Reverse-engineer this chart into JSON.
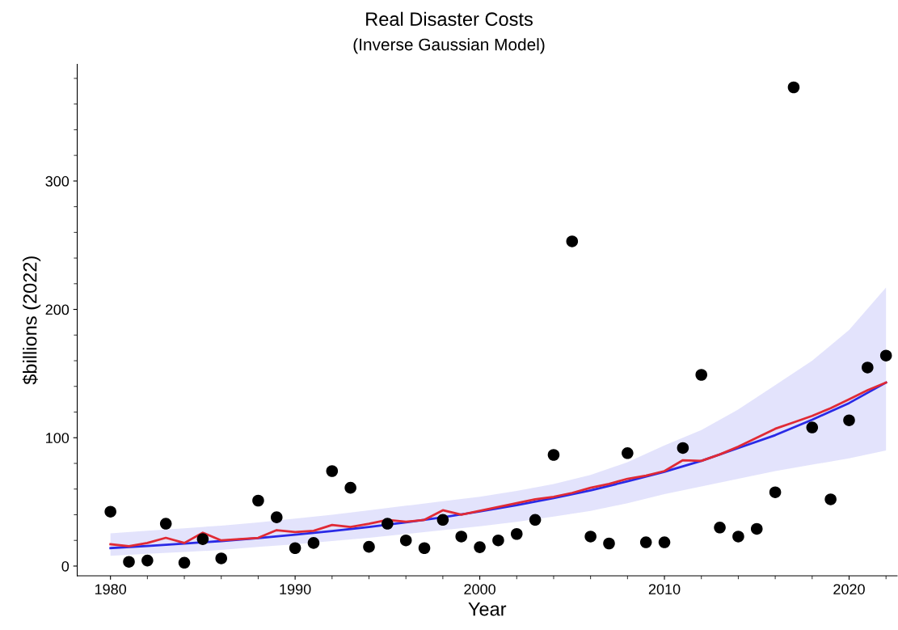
{
  "chart_data": {
    "type": "scatter",
    "title": "Real Disaster Costs",
    "subtitle": "(Inverse Gaussian Model)",
    "xlabel": "Year",
    "ylabel": "$billions (2022)",
    "xlim": [
      1978.2,
      2022.6
    ],
    "ylim": [
      -7.6,
      391
    ],
    "xticks": [
      1980,
      1990,
      2000,
      2010,
      2020
    ],
    "yticks": [
      0,
      100,
      200,
      300
    ],
    "grid": false,
    "series": [
      {
        "type": "line",
        "color": "#2a2ae6",
        "marker": "none",
        "line_style": "solid",
        "x": [
          1980,
          1982,
          1984,
          1986,
          1988,
          1990,
          1992,
          1994,
          1996,
          1998,
          2000,
          2002,
          2004,
          2006,
          2008,
          2010,
          2012,
          2014,
          2016,
          2018,
          2020,
          2022
        ],
        "values": [
          14,
          15.6,
          17.5,
          19.5,
          21.8,
          24.5,
          27.3,
          30.5,
          34,
          38,
          42.5,
          47.5,
          53,
          59,
          66,
          73.5,
          82,
          92,
          102,
          114,
          127,
          143
        ],
        "lower": [
          8,
          9.5,
          11,
          12.5,
          15,
          17,
          19.5,
          22,
          25,
          28,
          31,
          34.5,
          38.5,
          43,
          49,
          56,
          62,
          68,
          74,
          79,
          84,
          90
        ],
        "upper": [
          25.5,
          27.5,
          29.5,
          31.5,
          34,
          37,
          40,
          43.5,
          47,
          50.5,
          54,
          58.5,
          64,
          71,
          81,
          94,
          106,
          122,
          141,
          160,
          184,
          217
        ]
      },
      {
        "type": "line",
        "color": "#e02a35",
        "marker": "none",
        "line_style": "solid",
        "x": [
          1980,
          1981,
          1982,
          1983,
          1984,
          1985,
          1986,
          1987,
          1988,
          1989,
          1990,
          1991,
          1992,
          1993,
          1994,
          1995,
          1996,
          1997,
          1998,
          1999,
          2000,
          2001,
          2002,
          2003,
          2004,
          2005,
          2006,
          2007,
          2008,
          2009,
          2010,
          2011,
          2012,
          2013,
          2014,
          2015,
          2016,
          2017,
          2018,
          2019,
          2020,
          2021,
          2022
        ],
        "values": [
          17,
          15.5,
          18,
          22,
          18,
          26,
          20,
          21,
          22,
          28,
          26.5,
          27.5,
          32,
          30.5,
          33,
          36,
          34.5,
          36,
          43.5,
          40,
          43,
          46,
          49,
          52,
          54,
          57,
          61,
          64,
          68,
          70.5,
          74,
          82.5,
          82,
          87,
          93,
          100,
          107,
          112,
          117,
          123,
          130,
          137,
          143
        ]
      },
      {
        "color": "#000000",
        "marker": "circle",
        "x": [
          1980,
          1981,
          1982,
          1983,
          1984,
          1985,
          1986,
          1988,
          1989,
          1990,
          1991,
          1992,
          1993,
          1994,
          1995,
          1996,
          1997,
          1998,
          1999,
          2000,
          2001,
          2002,
          2003,
          2004,
          2005,
          2006,
          2007,
          2008,
          2009,
          2010,
          2011,
          2012,
          2013,
          2014,
          2015,
          2016,
          2017,
          2018,
          2019,
          2020,
          2021,
          2022
        ],
        "values": [
          42.4,
          3.3,
          4.3,
          33,
          2.6,
          21,
          6,
          51,
          38,
          14,
          18,
          74,
          61,
          15,
          33,
          20,
          14,
          36,
          23,
          14.7,
          20,
          25,
          36,
          86.6,
          253,
          23,
          17.6,
          88,
          18.5,
          18.5,
          92,
          149,
          30,
          23,
          29,
          57.5,
          373,
          108,
          52,
          113.6,
          154.7,
          164
        ]
      }
    ]
  }
}
